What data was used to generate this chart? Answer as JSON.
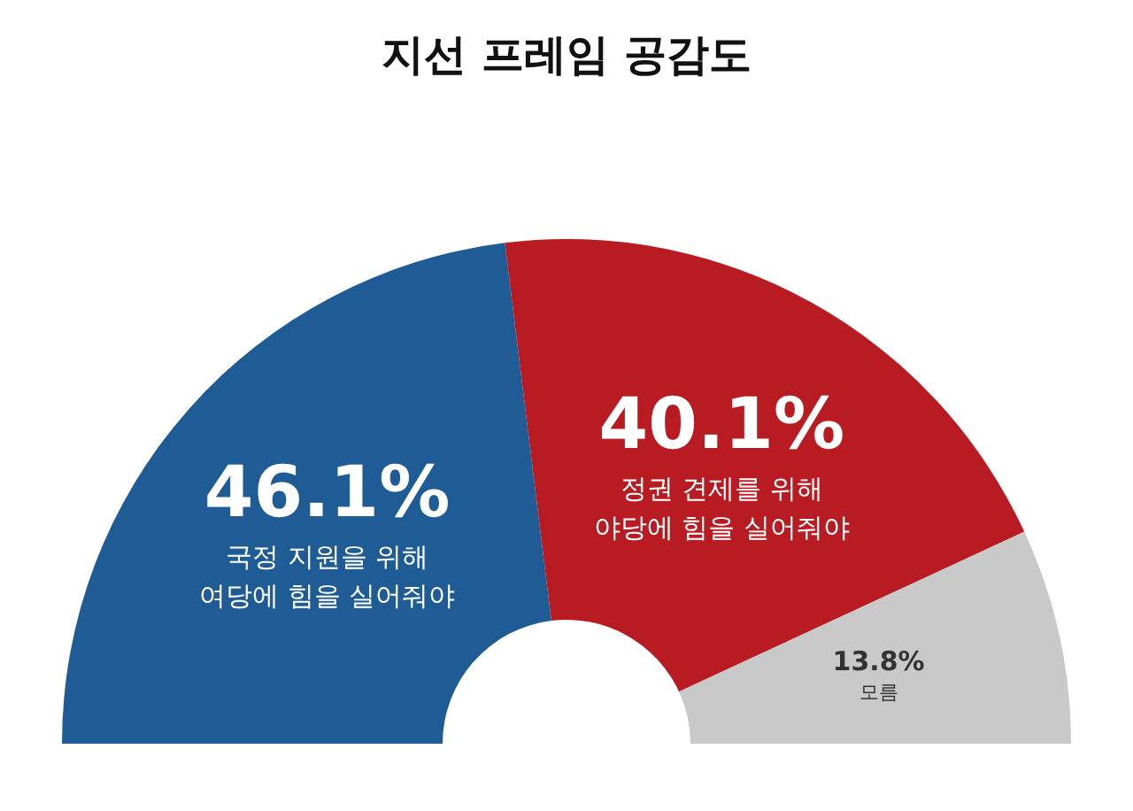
{
  "chart_data": {
    "type": "donut",
    "title": "지선 프레임 공감도",
    "categories": [
      "국정 지원을 위해\n여당에 힘을 실어줘야",
      "정권 견제를 위해\n야당에 힘을 실어줘야",
      "모름"
    ],
    "values": [
      46.1,
      40.1,
      13.8
    ],
    "colors": [
      "#1f5c96",
      "#b81c22",
      "#c9c9c9"
    ],
    "value_labels": [
      "46.1%",
      "40.1%",
      "13.8%"
    ],
    "legend": false
  }
}
